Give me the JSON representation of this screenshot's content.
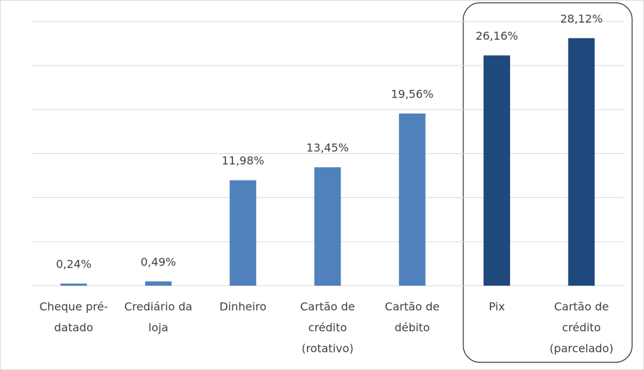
{
  "chart_data": {
    "type": "bar",
    "categories": [
      [
        "Cheque pré-",
        "datado"
      ],
      [
        "Crediário da",
        "loja"
      ],
      [
        "Dinheiro"
      ],
      [
        "Cartão de",
        "crédito",
        "(rotativo)"
      ],
      [
        "Cartão de",
        "débito"
      ],
      [
        "Pix"
      ],
      [
        "Cartão de",
        "crédito",
        "(parcelado)"
      ]
    ],
    "values": [
      0.24,
      0.49,
      11.98,
      13.45,
      19.56,
      26.16,
      28.12
    ],
    "value_labels": [
      "0,24%",
      "0,49%",
      "11,98%",
      "13,45%",
      "19,56%",
      "26,16%",
      "28,12%"
    ],
    "colors": [
      "#4f81bd",
      "#4f81bd",
      "#4f81bd",
      "#4f81bd",
      "#4f81bd",
      "#1f497d",
      "#1f497d"
    ],
    "ylim": [
      0,
      30
    ],
    "yticks": [
      0,
      5,
      10,
      15,
      20,
      25,
      30
    ],
    "grid": true
  }
}
